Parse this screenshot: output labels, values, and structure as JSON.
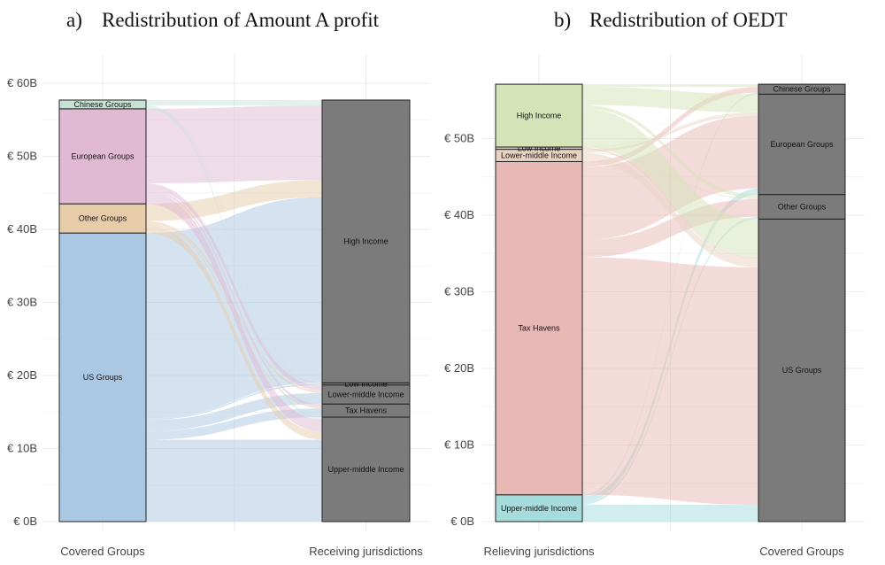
{
  "titles": {
    "a": {
      "letter": "a)",
      "text": "Redistribution of Amount A profit"
    },
    "b": {
      "letter": "b)",
      "text": "Redistribution of OEDT"
    }
  },
  "colors": {
    "Chinese Groups": "#c6e3d4",
    "European Groups": "#e0b9d3",
    "Other Groups": "#e6cca9",
    "US Groups": "#abc8e3",
    "High Income": "#d5e4b8",
    "Low Income": "#e3c8b8",
    "Lower-middle Income": "#e8d3c3",
    "Tax Havens": "#e8b8b4",
    "Upper-middle Income": "#a6dcdb",
    "gray_node": "#7b7b7b"
  },
  "chart_data": [
    {
      "type": "alluvial",
      "title": "Redistribution of Amount A profit",
      "ylabel": "",
      "ylim": [
        0,
        60
      ],
      "y_ticks": [
        "€ 0B",
        "€ 10B",
        "€ 20B",
        "€ 30B",
        "€ 40B",
        "€ 50B",
        "€ 60B"
      ],
      "y_tick_values": [
        0,
        10,
        20,
        30,
        40,
        50,
        60
      ],
      "x_labels": [
        "Covered Groups",
        "Receiving jurisdictions"
      ],
      "left_nodes": [
        {
          "name": "US Groups",
          "value": 39.5
        },
        {
          "name": "Other Groups",
          "value": 4.0
        },
        {
          "name": "European Groups",
          "value": 13.0
        },
        {
          "name": "Chinese Groups",
          "value": 1.2
        }
      ],
      "right_nodes": [
        {
          "name": "Upper-middle Income",
          "value": 14.3
        },
        {
          "name": "Tax Havens",
          "value": 1.8
        },
        {
          "name": "Lower-middle Income",
          "value": 2.6
        },
        {
          "name": "Low Income",
          "value": 0.3
        },
        {
          "name": "High Income",
          "value": 38.7
        }
      ],
      "colored_by": "left",
      "flows": [
        {
          "from": "US Groups",
          "to": "Upper-middle Income",
          "value": 11.2
        },
        {
          "from": "US Groups",
          "to": "Tax Havens",
          "value": 1.2
        },
        {
          "from": "US Groups",
          "to": "Lower-middle Income",
          "value": 1.5
        },
        {
          "from": "US Groups",
          "to": "Low Income",
          "value": 0.2
        },
        {
          "from": "US Groups",
          "to": "High Income",
          "value": 25.4
        },
        {
          "from": "Other Groups",
          "to": "Upper-middle Income",
          "value": 1.1
        },
        {
          "from": "Other Groups",
          "to": "Tax Havens",
          "value": 0.2
        },
        {
          "from": "Other Groups",
          "to": "Lower-middle Income",
          "value": 0.3
        },
        {
          "from": "Other Groups",
          "to": "Low Income",
          "value": 0.03
        },
        {
          "from": "Other Groups",
          "to": "High Income",
          "value": 2.37
        },
        {
          "from": "European Groups",
          "to": "Upper-middle Income",
          "value": 1.7
        },
        {
          "from": "European Groups",
          "to": "Tax Havens",
          "value": 0.35
        },
        {
          "from": "European Groups",
          "to": "Lower-middle Income",
          "value": 0.7
        },
        {
          "from": "European Groups",
          "to": "Low Income",
          "value": 0.06
        },
        {
          "from": "European Groups",
          "to": "High Income",
          "value": 10.19
        },
        {
          "from": "Chinese Groups",
          "to": "Upper-middle Income",
          "value": 0.3
        },
        {
          "from": "Chinese Groups",
          "to": "Tax Havens",
          "value": 0.05
        },
        {
          "from": "Chinese Groups",
          "to": "Lower-middle Income",
          "value": 0.1
        },
        {
          "from": "Chinese Groups",
          "to": "Low Income",
          "value": 0.01
        },
        {
          "from": "Chinese Groups",
          "to": "High Income",
          "value": 0.74
        }
      ]
    },
    {
      "type": "alluvial",
      "title": "Redistribution of OEDT",
      "ylabel": "",
      "ylim": [
        0,
        57.5
      ],
      "y_ticks": [
        "€ 0B",
        "€ 10B",
        "€ 20B",
        "€ 30B",
        "€ 40B",
        "€ 50B"
      ],
      "y_tick_values": [
        0,
        10,
        20,
        30,
        40,
        50
      ],
      "x_labels": [
        "Relieving jurisdictions",
        "Covered Groups"
      ],
      "left_nodes": [
        {
          "name": "Upper-middle Income",
          "value": 3.5
        },
        {
          "name": "Tax Havens",
          "value": 43.5
        },
        {
          "name": "Lower-middle Income",
          "value": 1.6
        },
        {
          "name": "Low Income",
          "value": 0.3
        },
        {
          "name": "High Income",
          "value": 8.2
        }
      ],
      "right_nodes": [
        {
          "name": "US Groups",
          "value": 39.5
        },
        {
          "name": "Other Groups",
          "value": 3.2
        },
        {
          "name": "European Groups",
          "value": 13.1
        },
        {
          "name": "Chinese Groups",
          "value": 1.3
        }
      ],
      "colored_by": "left",
      "flows": [
        {
          "from": "Upper-middle Income",
          "to": "US Groups",
          "value": 2.2
        },
        {
          "from": "Upper-middle Income",
          "to": "Other Groups",
          "value": 0.3
        },
        {
          "from": "Upper-middle Income",
          "to": "European Groups",
          "value": 0.8
        },
        {
          "from": "Upper-middle Income",
          "to": "Chinese Groups",
          "value": 0.2
        },
        {
          "from": "Tax Havens",
          "to": "US Groups",
          "value": 31.0
        },
        {
          "from": "Tax Havens",
          "to": "Other Groups",
          "value": 2.3
        },
        {
          "from": "Tax Havens",
          "to": "European Groups",
          "value": 9.5
        },
        {
          "from": "Tax Havens",
          "to": "Chinese Groups",
          "value": 0.7
        },
        {
          "from": "Lower-middle Income",
          "to": "US Groups",
          "value": 1.1
        },
        {
          "from": "Lower-middle Income",
          "to": "Other Groups",
          "value": 0.1
        },
        {
          "from": "Lower-middle Income",
          "to": "European Groups",
          "value": 0.35
        },
        {
          "from": "Lower-middle Income",
          "to": "Chinese Groups",
          "value": 0.05
        },
        {
          "from": "Low Income",
          "to": "US Groups",
          "value": 0.2
        },
        {
          "from": "Low Income",
          "to": "Other Groups",
          "value": 0.02
        },
        {
          "from": "Low Income",
          "to": "European Groups",
          "value": 0.07
        },
        {
          "from": "Low Income",
          "to": "Chinese Groups",
          "value": 0.01
        },
        {
          "from": "High Income",
          "to": "US Groups",
          "value": 5.0
        },
        {
          "from": "High Income",
          "to": "Other Groups",
          "value": 0.48
        },
        {
          "from": "High Income",
          "to": "European Groups",
          "value": 2.38
        },
        {
          "from": "High Income",
          "to": "Chinese Groups",
          "value": 0.34
        }
      ]
    }
  ]
}
